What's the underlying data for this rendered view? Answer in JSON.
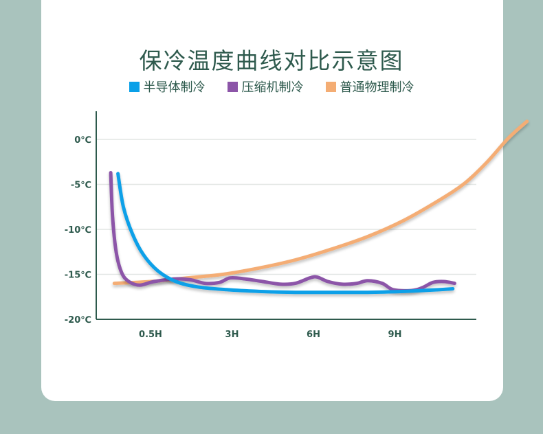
{
  "chart_data": {
    "type": "line",
    "title": "保冷温度曲线对比示意图",
    "xlabel": "",
    "ylabel": "",
    "ylim": [
      -20,
      2
    ],
    "xlim": [
      0,
      10.5
    ],
    "y_ticks": [
      {
        "value": 0,
        "label": "0℃"
      },
      {
        "value": -5,
        "label": "-5℃"
      },
      {
        "value": -10,
        "label": "-10℃"
      },
      {
        "value": -15,
        "label": "-15℃"
      },
      {
        "value": -20,
        "label": "-20℃"
      }
    ],
    "x_ticks": [
      {
        "value": 1.5,
        "label": "0.5H"
      },
      {
        "value": 3.75,
        "label": "3H"
      },
      {
        "value": 6.0,
        "label": "6H"
      },
      {
        "value": 8.25,
        "label": "9H"
      }
    ],
    "grid": true,
    "legend_position": "top-center",
    "series": [
      {
        "name": "半导体制冷",
        "color": "#0aa0e8",
        "points": [
          [
            0.6,
            -3.8
          ],
          [
            0.75,
            -7.5
          ],
          [
            1.0,
            -10.5
          ],
          [
            1.3,
            -12.8
          ],
          [
            1.7,
            -14.6
          ],
          [
            2.2,
            -15.8
          ],
          [
            2.8,
            -16.4
          ],
          [
            3.6,
            -16.7
          ],
          [
            4.5,
            -16.9
          ],
          [
            5.5,
            -17.0
          ],
          [
            6.5,
            -17.0
          ],
          [
            7.5,
            -17.0
          ],
          [
            8.5,
            -16.9
          ],
          [
            9.5,
            -16.7
          ],
          [
            9.85,
            -16.6
          ]
        ]
      },
      {
        "name": "压缩机制冷",
        "color": "#8c55a8",
        "points": [
          [
            0.4,
            -3.7
          ],
          [
            0.45,
            -8.5
          ],
          [
            0.55,
            -12.5
          ],
          [
            0.7,
            -14.8
          ],
          [
            0.9,
            -15.8
          ],
          [
            1.2,
            -16.2
          ],
          [
            1.6,
            -15.8
          ],
          [
            2.2,
            -15.5
          ],
          [
            2.6,
            -15.6
          ],
          [
            3.0,
            -16.0
          ],
          [
            3.4,
            -15.9
          ],
          [
            3.7,
            -15.4
          ],
          [
            4.1,
            -15.5
          ],
          [
            4.6,
            -15.8
          ],
          [
            5.1,
            -16.1
          ],
          [
            5.5,
            -16.0
          ],
          [
            5.9,
            -15.4
          ],
          [
            6.1,
            -15.3
          ],
          [
            6.4,
            -15.8
          ],
          [
            6.8,
            -16.1
          ],
          [
            7.2,
            -16.0
          ],
          [
            7.5,
            -15.7
          ],
          [
            7.9,
            -16.0
          ],
          [
            8.2,
            -16.7
          ],
          [
            8.7,
            -16.8
          ],
          [
            9.0,
            -16.5
          ],
          [
            9.3,
            -15.9
          ],
          [
            9.6,
            -15.8
          ],
          [
            9.9,
            -16.0
          ]
        ]
      },
      {
        "name": "普通物理制冷",
        "color": "#f4ad74",
        "points": [
          [
            0.5,
            -16.0
          ],
          [
            1.5,
            -15.8
          ],
          [
            2.5,
            -15.4
          ],
          [
            3.5,
            -15.0
          ],
          [
            4.5,
            -14.3
          ],
          [
            5.5,
            -13.4
          ],
          [
            6.5,
            -12.2
          ],
          [
            7.5,
            -10.8
          ],
          [
            8.5,
            -9.0
          ],
          [
            9.5,
            -6.7
          ],
          [
            10.2,
            -4.8
          ],
          [
            10.8,
            -2.5
          ],
          [
            11.4,
            0.2
          ],
          [
            11.9,
            2.0
          ]
        ]
      }
    ]
  }
}
